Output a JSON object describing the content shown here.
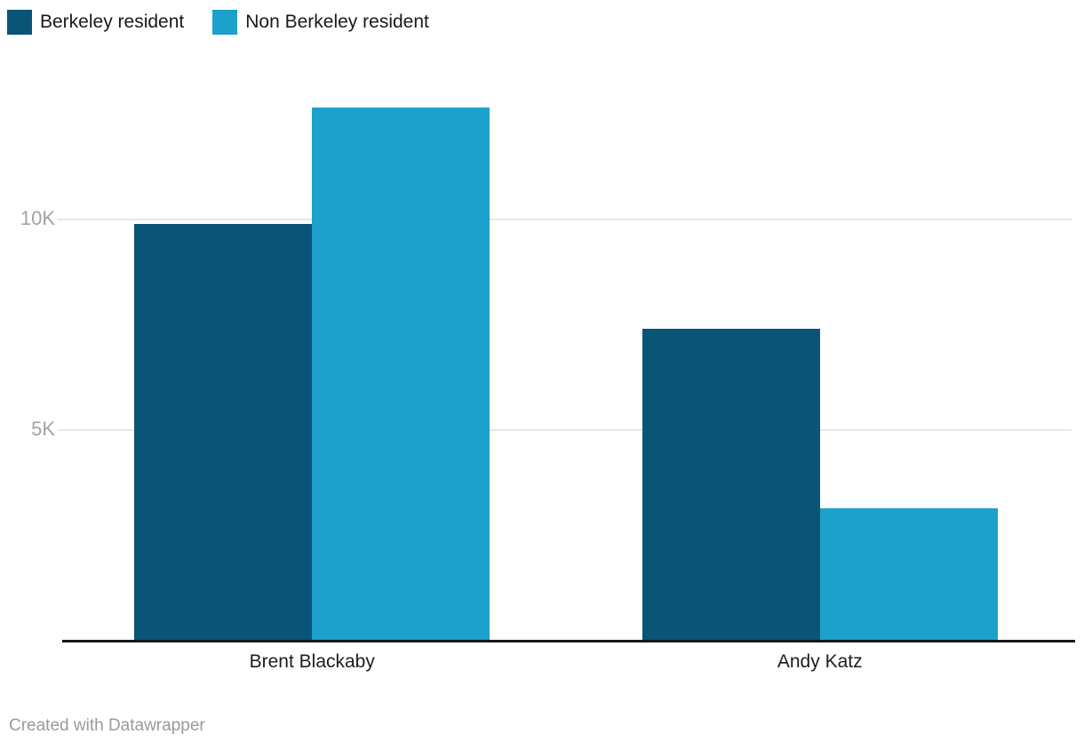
{
  "footer": {
    "credit": "Created with Datawrapper"
  },
  "chart_data": {
    "type": "bar",
    "categories": [
      "Brent Blackaby",
      "Andy Katz"
    ],
    "series": [
      {
        "name": "Berkeley resident",
        "color": "#0a5478",
        "values": [
          9900,
          7400
        ]
      },
      {
        "name": "Non Berkeley resident",
        "color": "#1ca0cc",
        "values": [
          12650,
          3150
        ]
      }
    ],
    "yticks": [
      {
        "value": 5000,
        "label": "5K"
      },
      {
        "value": 10000,
        "label": "10K"
      }
    ],
    "ylim": [
      0,
      13000
    ],
    "grid": true,
    "legend_position": "top-left",
    "xlabel": "",
    "ylabel": ""
  }
}
